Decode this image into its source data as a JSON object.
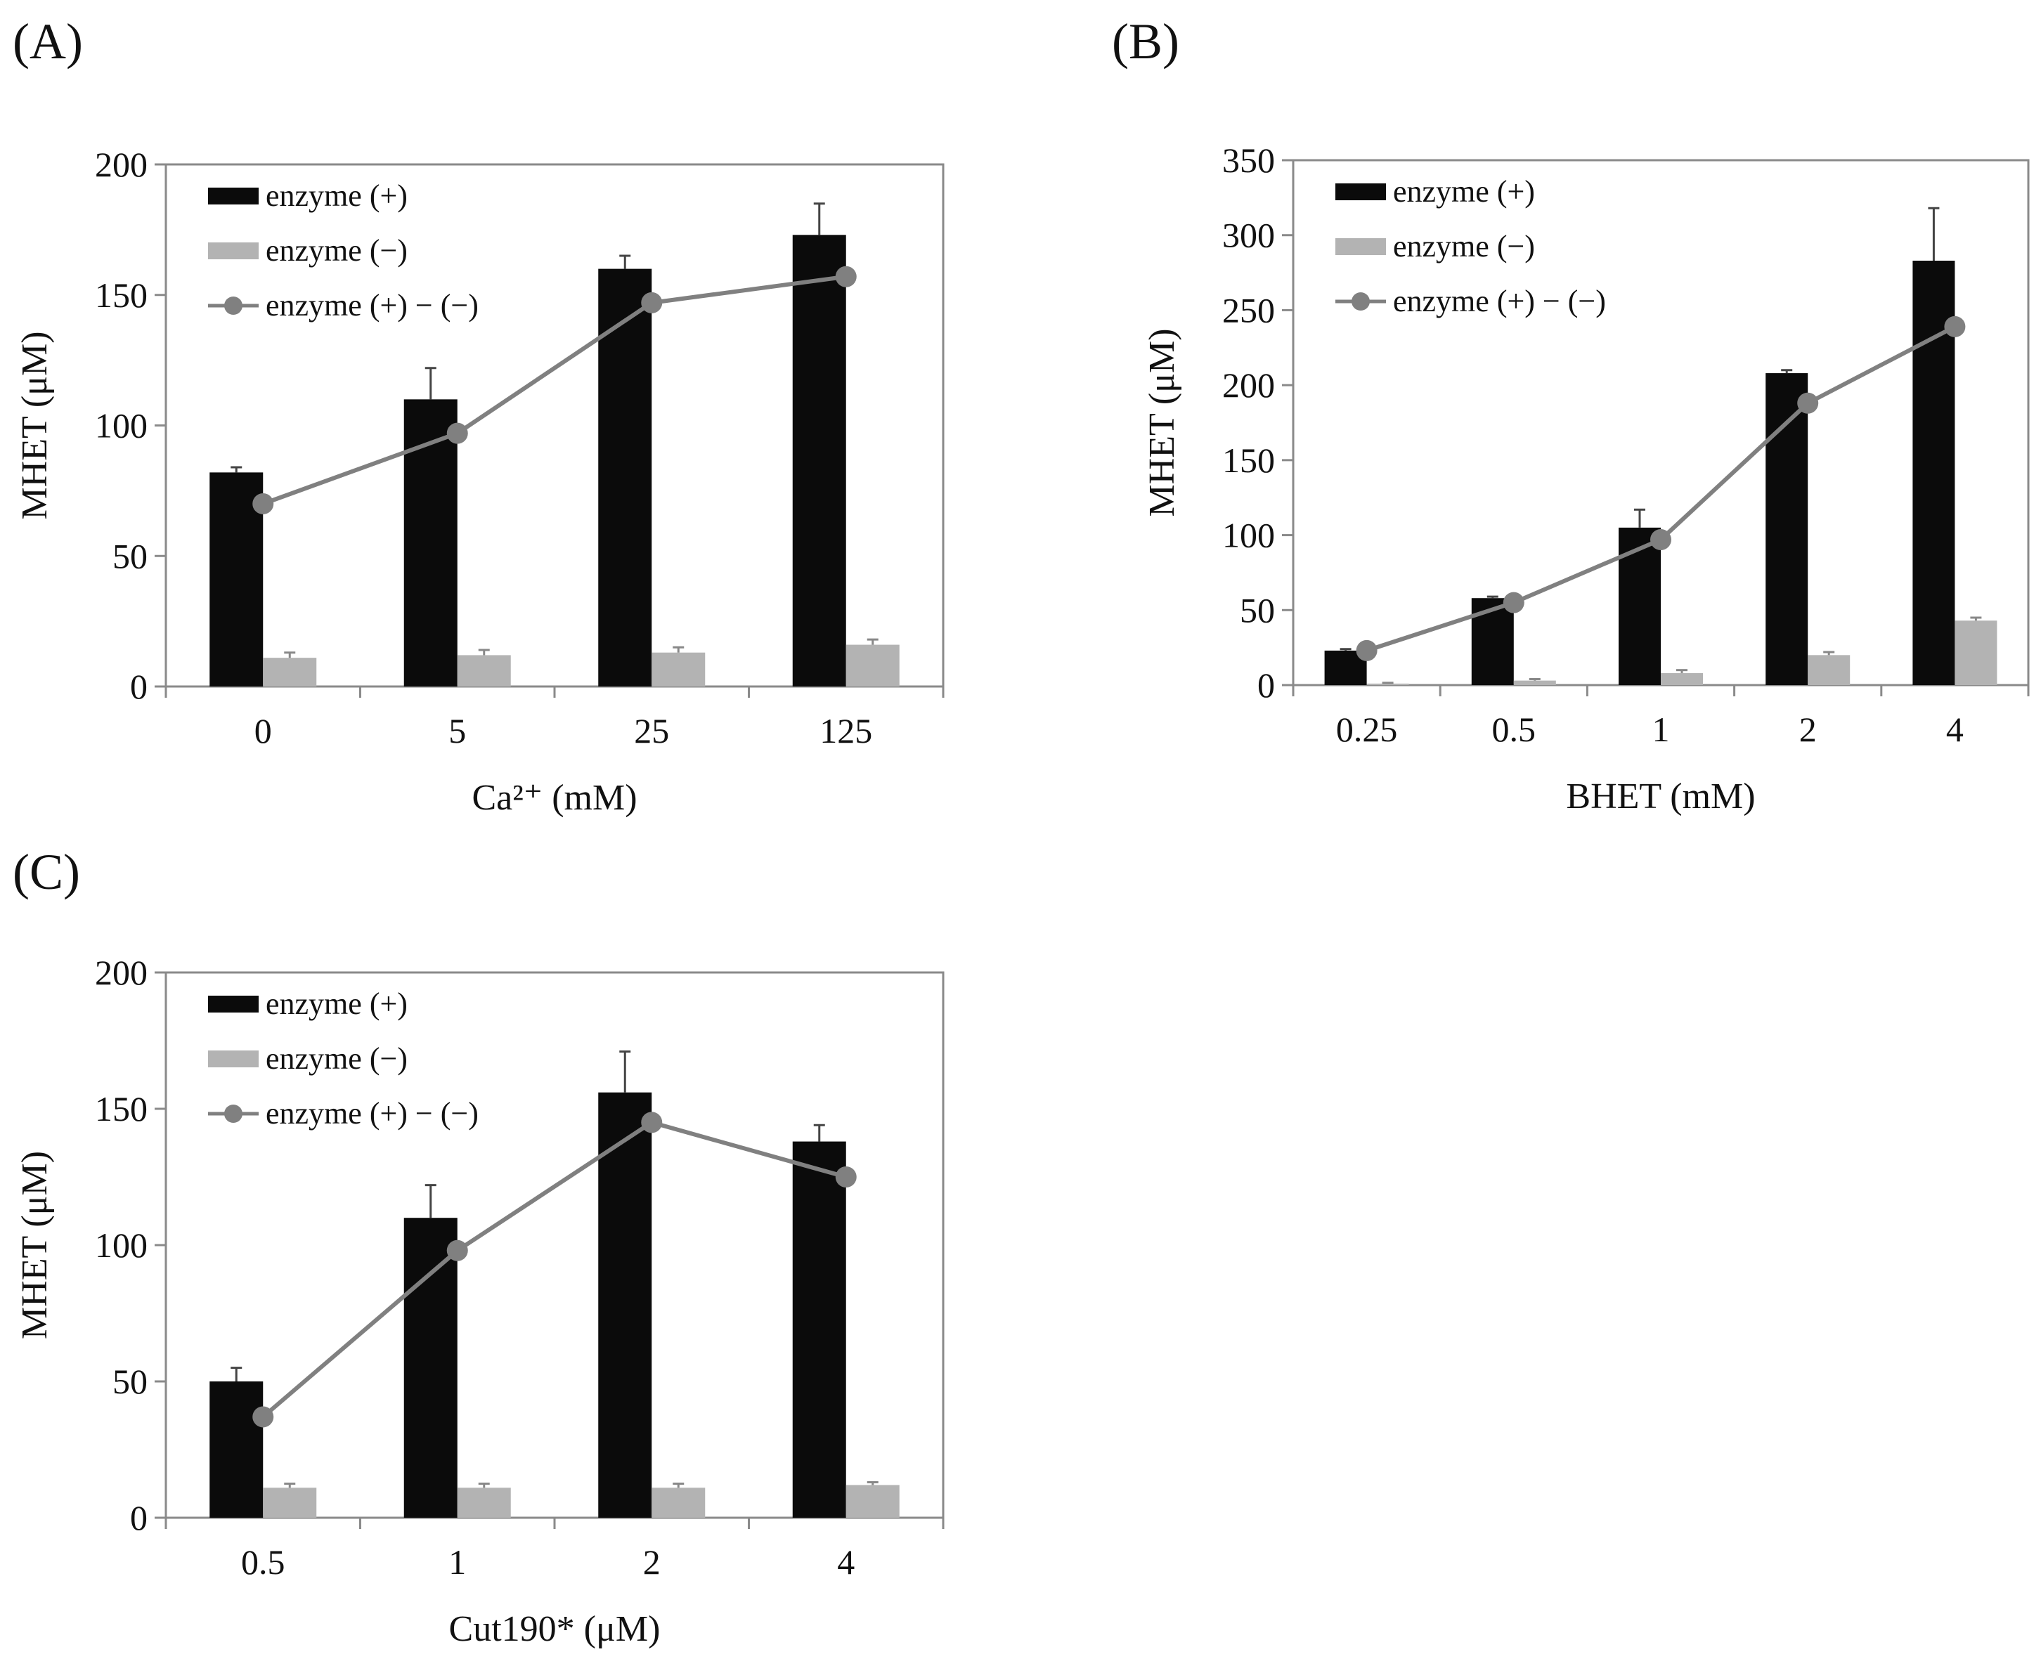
{
  "colors": {
    "enzyme_plus": "#0b0b0b",
    "enzyme_minus": "#b3b3b3",
    "difference": "#808080",
    "axis": "#8a8a8a"
  },
  "chart_data": [
    {
      "panel_label": "(A)",
      "type": "bar",
      "xlabel": "Ca²⁺ (mM)",
      "ylabel": "MHET (μM)",
      "ylim": [
        0,
        200
      ],
      "yticks": [
        "0",
        "50",
        "100",
        "150",
        "200"
      ],
      "categories": [
        "0",
        "5",
        "25",
        "125"
      ],
      "legend_position": "top-left",
      "legend": [
        "enzyme (+)",
        "enzyme (−)",
        "enzyme (+) − (−)"
      ],
      "series": [
        {
          "name": "enzyme (+)",
          "kind": "bar",
          "values": [
            82,
            110,
            160,
            173
          ],
          "errors": [
            2,
            12,
            5,
            12
          ]
        },
        {
          "name": "enzyme (−)",
          "kind": "bar",
          "values": [
            11,
            12,
            13,
            16
          ],
          "errors": [
            2,
            2,
            2,
            2
          ]
        },
        {
          "name": "enzyme (+) − (−)",
          "kind": "line",
          "values": [
            70,
            97,
            147,
            157
          ]
        }
      ]
    },
    {
      "panel_label": "(B)",
      "type": "bar",
      "xlabel": "BHET (mM)",
      "ylabel": "MHET (μM)",
      "ylim": [
        0,
        350
      ],
      "yticks": [
        "0",
        "50",
        "100",
        "150",
        "200",
        "250",
        "300",
        "350"
      ],
      "categories": [
        "0.25",
        "0.5",
        "1",
        "2",
        "4"
      ],
      "legend_position": "top-left",
      "legend": [
        "enzyme (+)",
        "enzyme (−)",
        "enzyme (+) − (−)"
      ],
      "series": [
        {
          "name": "enzyme (+)",
          "kind": "bar",
          "values": [
            23,
            58,
            105,
            208,
            283
          ],
          "errors": [
            1,
            1,
            12,
            2,
            35
          ]
        },
        {
          "name": "enzyme (−)",
          "kind": "bar",
          "values": [
            1,
            3,
            8,
            20,
            43
          ],
          "errors": [
            0.5,
            1,
            2,
            2,
            2
          ]
        },
        {
          "name": "enzyme (+) − (−)",
          "kind": "line",
          "values": [
            23,
            55,
            97,
            188,
            239
          ]
        }
      ]
    },
    {
      "panel_label": "(C)",
      "type": "bar",
      "xlabel": "Cut190* (μM)",
      "ylabel": "MHET (μM)",
      "ylim": [
        0,
        200
      ],
      "yticks": [
        "0",
        "50",
        "100",
        "150",
        "200"
      ],
      "categories": [
        "0.5",
        "1",
        "2",
        "4"
      ],
      "legend_position": "top-left",
      "legend": [
        "enzyme (+)",
        "enzyme (−)",
        "enzyme (+) − (−)"
      ],
      "series": [
        {
          "name": "enzyme (+)",
          "kind": "bar",
          "values": [
            50,
            110,
            156,
            138
          ],
          "errors": [
            5,
            12,
            15,
            6
          ]
        },
        {
          "name": "enzyme (−)",
          "kind": "bar",
          "values": [
            11,
            11,
            11,
            12
          ],
          "errors": [
            1.5,
            1.5,
            1.5,
            1
          ]
        },
        {
          "name": "enzyme (+) − (−)",
          "kind": "line",
          "values": [
            37,
            98,
            145,
            125
          ]
        }
      ]
    }
  ]
}
